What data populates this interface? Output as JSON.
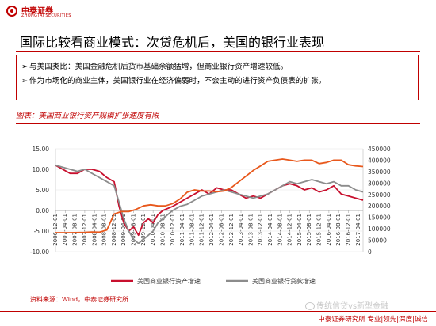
{
  "brand": {
    "name_cn": "中泰证券",
    "name_en": "ZHONGTAI SECURITIES"
  },
  "title": "国际比较看商业模式：次贷危机后，美国的银行业表现",
  "bullets": [
    "与美国类比：美国金融危机后货币基础余额猛增，但商业银行资产增速较低。",
    "作为市场化的商业主体，美国银行业在经济偏弱时，不会主动的进行资产负债表的扩张。"
  ],
  "figure_title": "图表：美国商业银行资产规模扩张速度有限",
  "source": "资料来源：Wind，中泰证券研究所",
  "watermark": "传统信贷vs新型金融",
  "footer": "中泰证券研究所 专业|领先|深度|诚信",
  "colors": {
    "accent": "#c00000",
    "series1": "#c8102e",
    "series2": "#8c8c8c",
    "series3": "#e8581c"
  },
  "chart_data": {
    "type": "line",
    "title": "美国商业银行资产规模扩张速度有限",
    "x_ticks": [
      "2006-12-01",
      "2007-04-01",
      "2007-08-01",
      "2007-12-01",
      "2008-04-01",
      "2008-08-01",
      "2008-12-01",
      "2009-04-01",
      "2009-08-01",
      "2009-12-01",
      "2010-04-01",
      "2010-08-01",
      "2010-12-01",
      "2011-04-01",
      "2011-08-01",
      "2011-12-01",
      "2012-04-01",
      "2012-08-01",
      "2012-12-01",
      "2013-04-01",
      "2013-08-01",
      "2013-12-01",
      "2014-04-01",
      "2014-08-01",
      "2014-12-01",
      "2015-04-01",
      "2015-08-01",
      "2015-12-01",
      "2016-04-01",
      "2016-08-01",
      "2016-12-01",
      "2017-04-01"
    ],
    "y_left": {
      "min": -10,
      "max": 15,
      "ticks": [
        "-10.00",
        "-5.00",
        "0.00",
        "5.00",
        "10.00",
        "15.00"
      ]
    },
    "y_right": {
      "min": 0,
      "max": 450000,
      "ticks": [
        "0",
        "50000",
        "100000",
        "150000",
        "200000",
        "250000",
        "300000",
        "350000",
        "400000",
        "450000"
      ]
    },
    "legend_position": "bottom",
    "series": [
      {
        "name": "美国商业银行资产增速",
        "axis": "left",
        "x": [
          "2006-12-01",
          "2007-03-01",
          "2007-06-01",
          "2007-09-01",
          "2007-12-01",
          "2008-03-01",
          "2008-06-01",
          "2008-09-01",
          "2008-12-01",
          "2009-02-01",
          "2009-04-01",
          "2009-06-01",
          "2009-08-01",
          "2009-10-01",
          "2009-12-01",
          "2010-02-01",
          "2010-04-01",
          "2010-06-01",
          "2010-08-01",
          "2010-10-01",
          "2010-12-01",
          "2011-03-01",
          "2011-06-01",
          "2011-09-01",
          "2011-12-01",
          "2012-03-01",
          "2012-06-01",
          "2012-09-01",
          "2012-12-01",
          "2013-03-01",
          "2013-06-01",
          "2013-09-01",
          "2013-12-01",
          "2014-03-01",
          "2014-06-01",
          "2014-09-01",
          "2014-12-01",
          "2015-03-01",
          "2015-06-01",
          "2015-09-01",
          "2015-12-01",
          "2016-03-01",
          "2016-06-01",
          "2016-09-01",
          "2016-12-01",
          "2017-03-01",
          "2017-06-01"
        ],
        "values": [
          11,
          10,
          9,
          9,
          10,
          10,
          9.5,
          8,
          7,
          1,
          -3,
          -5,
          -4,
          -6,
          -3,
          -2,
          -3,
          -1,
          0,
          0.5,
          1,
          2,
          3,
          4,
          5,
          4,
          5.5,
          5,
          5,
          4,
          3,
          3.5,
          3,
          4,
          5,
          6,
          6.5,
          6,
          5,
          5.5,
          4.5,
          5,
          6,
          4,
          3.5,
          3,
          2.5
        ]
      },
      {
        "name": "美国商业银行贷款增速",
        "axis": "left",
        "x": [
          "2006-12-01",
          "2007-03-01",
          "2007-06-01",
          "2007-09-01",
          "2007-12-01",
          "2008-03-01",
          "2008-06-01",
          "2008-09-01",
          "2008-12-01",
          "2009-02-01",
          "2009-04-01",
          "2009-06-01",
          "2009-08-01",
          "2009-10-01",
          "2009-12-01",
          "2010-02-01",
          "2010-04-01",
          "2010-06-01",
          "2010-08-01",
          "2010-10-01",
          "2010-12-01",
          "2011-03-01",
          "2011-06-01",
          "2011-09-01",
          "2011-12-01",
          "2012-03-01",
          "2012-06-01",
          "2012-09-01",
          "2012-12-01",
          "2013-03-01",
          "2013-06-01",
          "2013-09-01",
          "2013-12-01",
          "2014-03-01",
          "2014-06-01",
          "2014-09-01",
          "2014-12-01",
          "2015-03-01",
          "2015-06-01",
          "2015-09-01",
          "2015-12-01",
          "2016-03-01",
          "2016-06-01",
          "2016-09-01",
          "2016-12-01",
          "2017-03-01",
          "2017-06-01"
        ],
        "values": [
          11,
          10.5,
          10,
          9.5,
          10,
          9,
          8,
          7,
          6,
          2,
          -2,
          -5,
          -7,
          -8,
          -7,
          -6,
          -5,
          -3,
          -2,
          -1,
          0,
          1,
          1.5,
          2.5,
          3.5,
          4,
          4.5,
          5,
          4.5,
          4,
          3.5,
          3,
          3.5,
          4,
          5,
          6,
          7,
          6.5,
          7,
          7.5,
          7,
          6.5,
          7,
          6,
          6,
          5,
          4.5
        ]
      },
      {
        "axis": "right",
        "x": [
          "2006-12-01",
          "2007-06-01",
          "2007-12-01",
          "2008-03-01",
          "2008-06-01",
          "2008-09-01",
          "2008-12-01",
          "2009-03-01",
          "2009-06-01",
          "2009-09-01",
          "2009-12-01",
          "2010-03-01",
          "2010-06-01",
          "2010-09-01",
          "2010-12-01",
          "2011-03-01",
          "2011-06-01",
          "2011-09-01",
          "2011-12-01",
          "2012-03-01",
          "2012-06-01",
          "2012-09-01",
          "2012-12-01",
          "2013-03-01",
          "2013-06-01",
          "2013-09-01",
          "2013-12-01",
          "2014-03-01",
          "2014-06-01",
          "2014-09-01",
          "2014-12-01",
          "2015-03-01",
          "2015-06-01",
          "2015-09-01",
          "2015-12-01",
          "2016-03-01",
          "2016-06-01",
          "2016-09-01",
          "2016-12-01",
          "2017-03-01",
          "2017-06-01"
        ],
        "values": [
          83000,
          83000,
          84000,
          86000,
          85000,
          95000,
          165000,
          175000,
          175000,
          185000,
          200000,
          205000,
          200000,
          200000,
          210000,
          230000,
          260000,
          270000,
          265000,
          265000,
          262000,
          265000,
          280000,
          305000,
          330000,
          355000,
          375000,
          395000,
          400000,
          405000,
          400000,
          395000,
          400000,
          400000,
          385000,
          390000,
          400000,
          400000,
          380000,
          375000,
          372000
        ]
      }
    ]
  }
}
